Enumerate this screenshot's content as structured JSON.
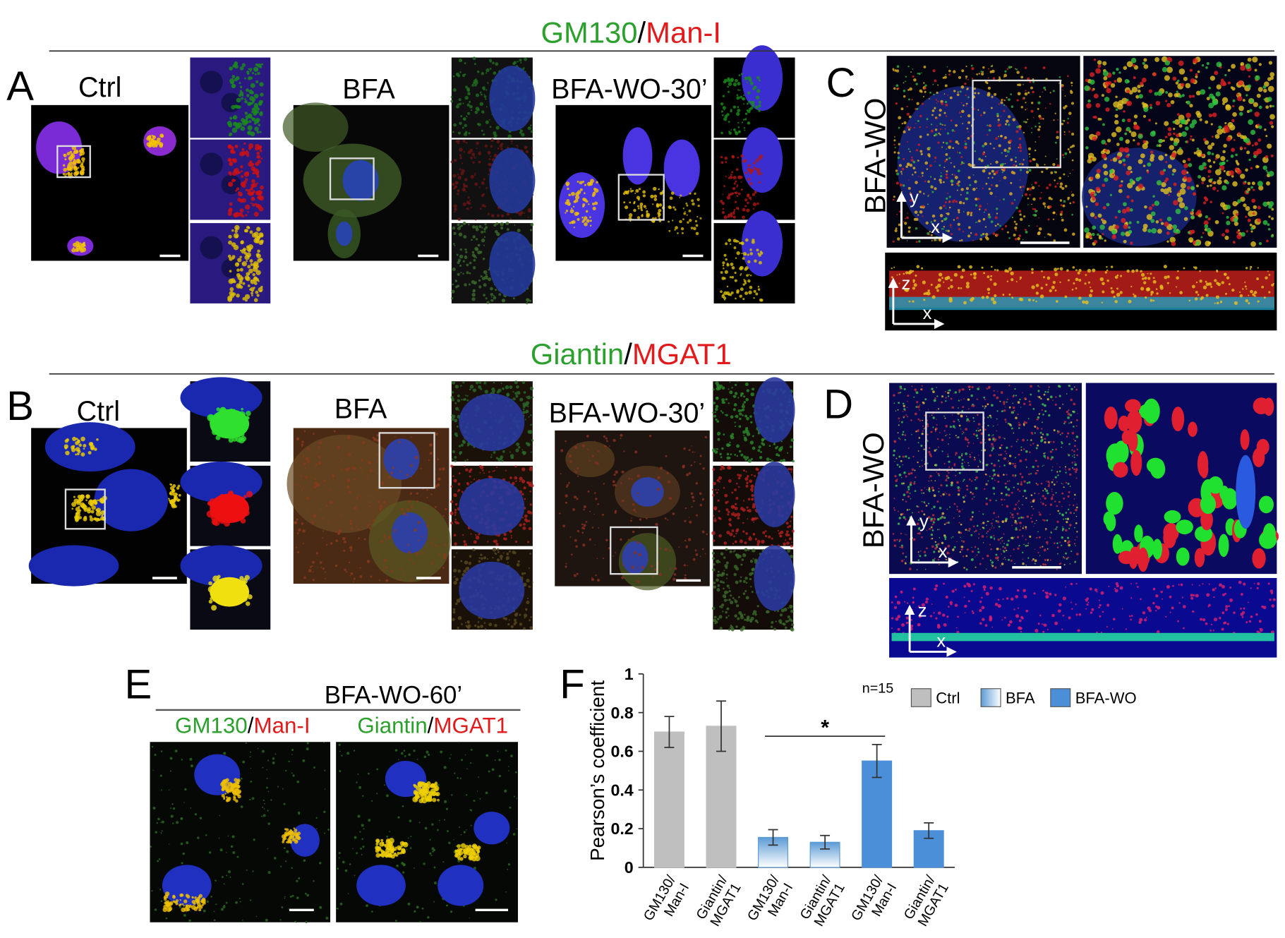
{
  "panel_labels": [
    "A",
    "B",
    "C",
    "D",
    "E",
    "F"
  ],
  "headings": [
    {
      "green": "GM130",
      "sep": "/",
      "red": "Man-I"
    },
    {
      "green": "Giantin",
      "sep": "/",
      "red": "MGAT1"
    }
  ],
  "panel_a": {
    "conditions": [
      "Ctrl",
      "BFA",
      "BFA-WO-30’"
    ]
  },
  "panel_b": {
    "conditions": [
      "Ctrl",
      "BFA",
      "BFA-WO-30’"
    ]
  },
  "panel_c": {
    "label": "BFA-WO",
    "axes_xy": [
      "y",
      "x"
    ],
    "axes_xz": [
      "z",
      "x"
    ]
  },
  "panel_d": {
    "label": "BFA-WO",
    "axes_xy": [
      "y",
      "x"
    ],
    "axes_xz": [
      "z",
      "x"
    ]
  },
  "panel_e": {
    "title": "BFA-WO-60’",
    "columns": [
      {
        "green": "GM130",
        "sep": "/",
        "red": "Man-I"
      },
      {
        "green": "Giantin",
        "sep": "/",
        "red": "MGAT1"
      }
    ]
  },
  "chart_data": {
    "type": "bar",
    "y_label": "Pearson’s coefficient",
    "categories": [
      [
        "GM130/",
        "Man-I"
      ],
      [
        "Giantin/",
        "MGAT1"
      ],
      [
        "GM130/",
        "Man-I"
      ],
      [
        "Giantin/",
        "MGAT1"
      ],
      [
        "GM130/",
        "Man-I"
      ],
      [
        "Giantin/",
        "MGAT1"
      ]
    ],
    "series": [
      {
        "name": "Ctrl",
        "color": "#bfbfbf",
        "values": [
          0.7,
          0.73,
          null,
          null,
          null,
          null
        ],
        "errors": [
          0.08,
          0.13,
          null,
          null,
          null,
          null
        ]
      },
      {
        "name": "BFA",
        "color": "#5b9bd5",
        "fill": "gradient",
        "values": [
          null,
          null,
          0.155,
          0.13,
          null,
          null
        ],
        "errors": [
          null,
          null,
          0.04,
          0.035,
          null,
          null
        ]
      },
      {
        "name": "BFA-WO",
        "color": "#4a8fd8",
        "values": [
          null,
          null,
          null,
          null,
          0.55,
          0.19
        ],
        "errors": [
          null,
          null,
          null,
          null,
          0.085,
          0.04
        ]
      }
    ],
    "legend_note": "n=15",
    "annotations": [
      "*"
    ],
    "ylim": [
      0,
      1
    ],
    "yticks": [
      0,
      0.2,
      0.4,
      0.6,
      0.8,
      1
    ],
    "grid": false
  }
}
